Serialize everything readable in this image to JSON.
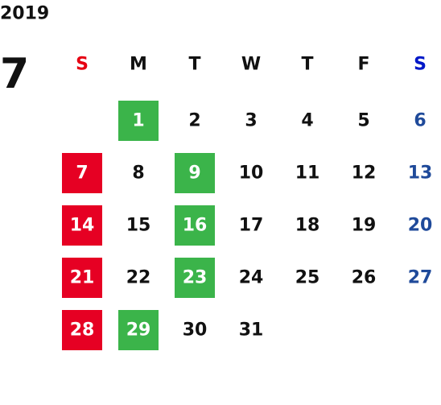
{
  "calendar": {
    "year": "2019",
    "month": "7",
    "weekdays": [
      "S",
      "M",
      "T",
      "W",
      "T",
      "F",
      "S"
    ],
    "weekday_colors": [
      "#e60012",
      "#111111",
      "#111111",
      "#111111",
      "#111111",
      "#111111",
      "#0018c8"
    ],
    "day_colors": [
      "#111111",
      "#111111",
      "#111111",
      "#111111",
      "#111111",
      "#111111",
      "#1f4a9a"
    ],
    "highlight_colors": {
      "red": "#e60023",
      "green": "#3bb44a"
    },
    "weeks": [
      [
        null,
        {
          "day": 1,
          "highlight": "green"
        },
        {
          "day": 2
        },
        {
          "day": 3
        },
        {
          "day": 4
        },
        {
          "day": 5
        },
        {
          "day": 6
        }
      ],
      [
        {
          "day": 7,
          "highlight": "red"
        },
        {
          "day": 8
        },
        {
          "day": 9,
          "highlight": "green"
        },
        {
          "day": 10
        },
        {
          "day": 11
        },
        {
          "day": 12
        },
        {
          "day": 13
        }
      ],
      [
        {
          "day": 14,
          "highlight": "red"
        },
        {
          "day": 15
        },
        {
          "day": 16,
          "highlight": "green"
        },
        {
          "day": 17
        },
        {
          "day": 18
        },
        {
          "day": 19
        },
        {
          "day": 20
        }
      ],
      [
        {
          "day": 21,
          "highlight": "red"
        },
        {
          "day": 22
        },
        {
          "day": 23,
          "highlight": "green"
        },
        {
          "day": 24
        },
        {
          "day": 25
        },
        {
          "day": 26
        },
        {
          "day": 27
        }
      ],
      [
        {
          "day": 28,
          "highlight": "red"
        },
        {
          "day": 29,
          "highlight": "green"
        },
        {
          "day": 30
        },
        {
          "day": 31
        },
        null,
        null,
        null
      ]
    ]
  }
}
